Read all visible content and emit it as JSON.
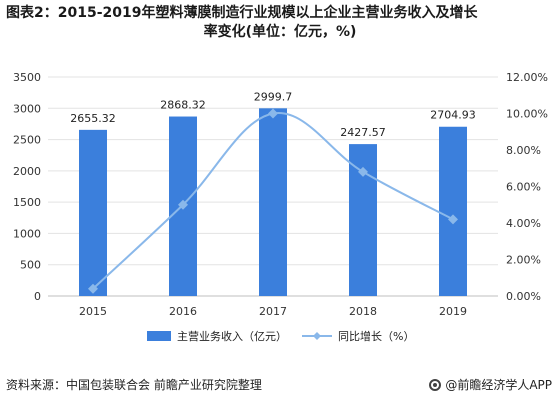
{
  "title_line1": "图表2：2015-2019年塑料薄膜制造行业规模以上企业主营业务收入及增长",
  "title_line2": "率变化(单位：亿元，%)",
  "source": "资料来源：中国包装联合会 前瞻产业研究院整理",
  "brand": "@前瞻经济学人APP",
  "chart_data": {
    "type": "bar",
    "categories": [
      "2015",
      "2016",
      "2017",
      "2018",
      "2019"
    ],
    "series": [
      {
        "name": "主营业务收入（亿元）",
        "type": "bar",
        "axis": "left",
        "color": "#3b7fdc",
        "values": [
          2655.32,
          2868.32,
          2999.7,
          2427.57,
          2704.93
        ],
        "labels": [
          "2655.32",
          "2868.32",
          "2999.7",
          "2427.57",
          "2704.93"
        ]
      },
      {
        "name": "同比增长（%）",
        "type": "line",
        "axis": "right",
        "color": "#8ab8ea",
        "values": [
          0.4,
          5.0,
          10.0,
          6.8,
          4.2
        ]
      }
    ],
    "y_left": {
      "min": 0,
      "max": 3500,
      "ticks": [
        "0",
        "500",
        "1000",
        "1500",
        "2000",
        "2500",
        "3000",
        "3500"
      ]
    },
    "y_right": {
      "min": 0,
      "max": 12,
      "ticks": [
        "0.00%",
        "2.00%",
        "4.00%",
        "6.00%",
        "8.00%",
        "10.00%",
        "12.00%"
      ]
    },
    "grid": true,
    "legend_position": "bottom"
  }
}
